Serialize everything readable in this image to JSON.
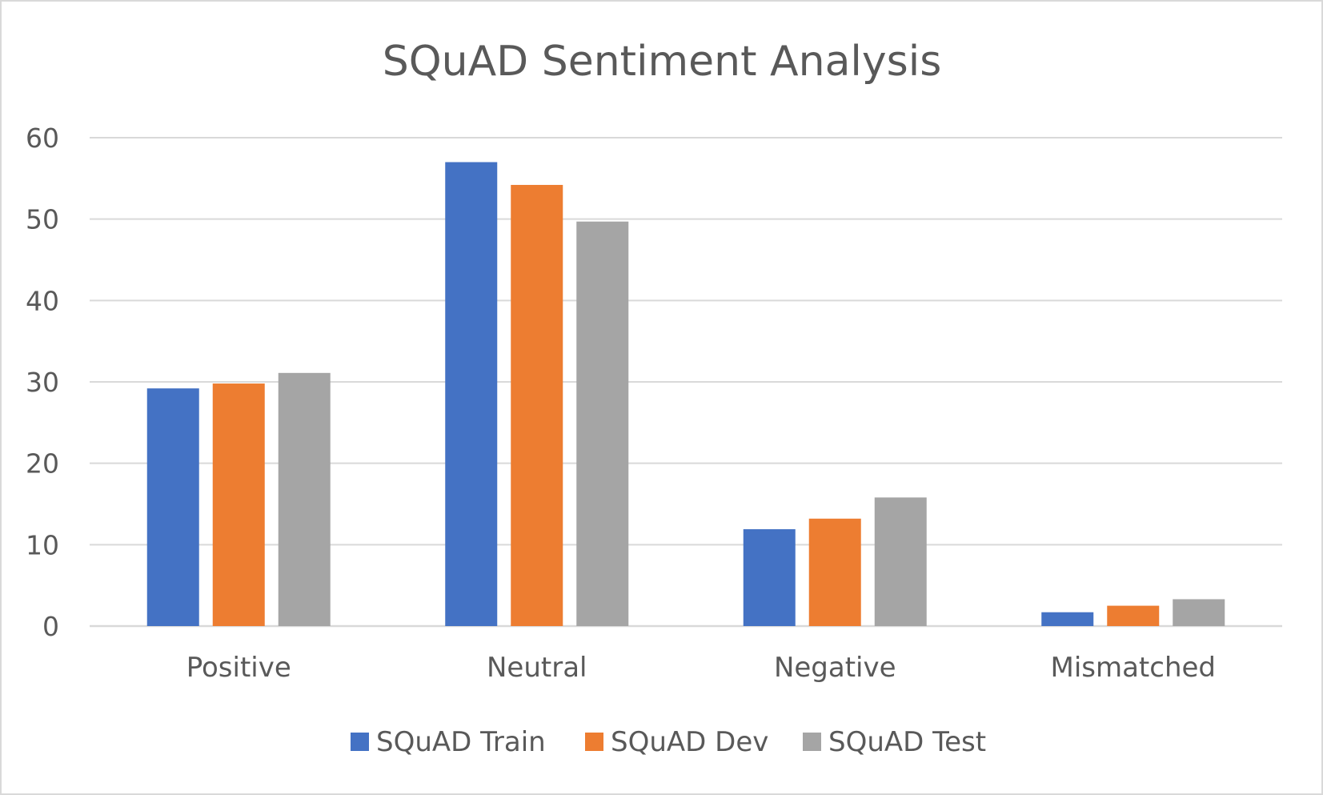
{
  "chart_data": {
    "type": "bar",
    "title": "SQuAD Sentiment Analysis",
    "xlabel": "",
    "ylabel": "",
    "categories": [
      "Positive",
      "Neutral",
      "Negative",
      "Mismatched"
    ],
    "series": [
      {
        "name": "SQuAD Train",
        "color": "#4472C4",
        "values": [
          29.2,
          57.0,
          11.9,
          1.7
        ]
      },
      {
        "name": "SQuAD Dev",
        "color": "#ED7D31",
        "values": [
          29.8,
          54.2,
          13.2,
          2.5
        ]
      },
      {
        "name": "SQuAD Test",
        "color": "#A5A5A5",
        "values": [
          31.1,
          49.7,
          15.8,
          3.3
        ]
      }
    ],
    "ylim": [
      0,
      60
    ],
    "yticks": [
      0,
      10,
      20,
      30,
      40,
      50,
      60
    ],
    "grid": true,
    "legend_position": "bottom"
  }
}
